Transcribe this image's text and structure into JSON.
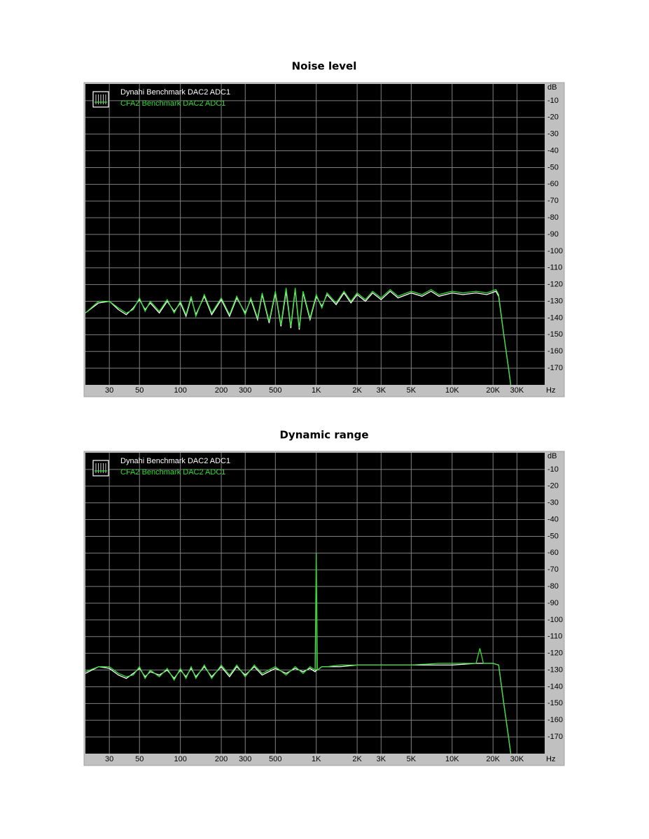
{
  "chart_data": [
    {
      "type": "line",
      "title": "Noise level",
      "x_unit": "Hz",
      "y_unit": "dB",
      "log_x": true,
      "grid": true,
      "xlim": [
        20,
        48000
      ],
      "ylim": [
        -180,
        0
      ],
      "xticks": [
        30,
        50,
        100,
        200,
        300,
        500,
        {
          "value": 1000,
          "label": "1K"
        },
        {
          "value": 2000,
          "label": "2K"
        },
        {
          "value": 3000,
          "label": "3K"
        },
        {
          "value": 5000,
          "label": "5K"
        },
        {
          "value": 10000,
          "label": "10K"
        },
        {
          "value": 20000,
          "label": "20K"
        },
        {
          "value": 30000,
          "label": "30K"
        }
      ],
      "yticks": [
        -10,
        -20,
        -30,
        -40,
        -50,
        -60,
        -70,
        -80,
        -90,
        -100,
        -110,
        -120,
        -130,
        -140,
        -150,
        -160,
        -170
      ],
      "x": [
        20,
        25,
        30,
        35,
        40,
        45,
        50,
        55,
        60,
        70,
        80,
        90,
        100,
        110,
        120,
        130,
        150,
        170,
        200,
        230,
        260,
        300,
        330,
        370,
        400,
        450,
        500,
        550,
        600,
        650,
        700,
        750,
        800,
        900,
        1000,
        1100,
        1200,
        1400,
        1600,
        1800,
        2000,
        2300,
        2600,
        3000,
        3500,
        4000,
        5000,
        6000,
        7000,
        8000,
        10000,
        12000,
        15000,
        18000,
        21000,
        22000,
        24000,
        26000,
        27000
      ],
      "series": [
        {
          "name": "Dynahi Benchmark DAC2 ADC1",
          "color": "#ffffff",
          "values": [
            -137,
            -131,
            -130,
            -135,
            -138,
            -134,
            -129,
            -135,
            -131,
            -137,
            -130,
            -136,
            -131,
            -139,
            -128,
            -138,
            -127,
            -138,
            -129,
            -139,
            -128,
            -137,
            -129,
            -141,
            -126,
            -143,
            -125,
            -145,
            -124,
            -146,
            -123,
            -147,
            -125,
            -141,
            -127,
            -133,
            -126,
            -132,
            -125,
            -131,
            -126,
            -130,
            -125,
            -129,
            -124,
            -128,
            -125,
            -127,
            -124,
            -127,
            -125,
            -126,
            -125,
            -126,
            -124,
            -127,
            -150,
            -170,
            -180
          ]
        },
        {
          "name": "CFA2 Benchmark DAC2 ADC1",
          "color": "#33dd33",
          "values": [
            -137,
            -130,
            -130,
            -134,
            -137,
            -135,
            -128,
            -136,
            -130,
            -136,
            -129,
            -137,
            -130,
            -138,
            -127,
            -139,
            -126,
            -137,
            -128,
            -138,
            -127,
            -138,
            -128,
            -140,
            -125,
            -142,
            -124,
            -144,
            -122,
            -145,
            -122,
            -146,
            -124,
            -140,
            -126,
            -134,
            -125,
            -131,
            -124,
            -130,
            -125,
            -129,
            -124,
            -128,
            -123,
            -127,
            -124,
            -126,
            -123,
            -126,
            -124,
            -125,
            -124,
            -125,
            -123,
            -126,
            -150,
            -170,
            -180
          ]
        }
      ]
    },
    {
      "type": "line",
      "title": "Dynamic range",
      "x_unit": "Hz",
      "y_unit": "dB",
      "log_x": true,
      "grid": true,
      "xlim": [
        20,
        48000
      ],
      "ylim": [
        -180,
        0
      ],
      "xticks": [
        30,
        50,
        100,
        200,
        300,
        500,
        {
          "value": 1000,
          "label": "1K"
        },
        {
          "value": 2000,
          "label": "2K"
        },
        {
          "value": 3000,
          "label": "3K"
        },
        {
          "value": 5000,
          "label": "5K"
        },
        {
          "value": 10000,
          "label": "10K"
        },
        {
          "value": 20000,
          "label": "20K"
        },
        {
          "value": 30000,
          "label": "30K"
        }
      ],
      "yticks": [
        -10,
        -20,
        -30,
        -40,
        -50,
        -60,
        -70,
        -80,
        -90,
        -100,
        -110,
        -120,
        -130,
        -140,
        -150,
        -160,
        -170
      ],
      "x": [
        20,
        25,
        30,
        35,
        40,
        45,
        50,
        55,
        60,
        70,
        80,
        90,
        100,
        110,
        120,
        130,
        150,
        170,
        200,
        230,
        260,
        300,
        350,
        400,
        500,
        600,
        700,
        800,
        900,
        980,
        1000,
        1020,
        1100,
        1200,
        1500,
        2000,
        3000,
        5000,
        8000,
        10000,
        15000,
        16000,
        17000,
        20000,
        22000,
        24000,
        26000,
        27000
      ],
      "series": [
        {
          "name": "Dynahi Benchmark DAC2 ADC1",
          "color": "#ffffff",
          "values": [
            -132,
            -128,
            -129,
            -133,
            -135,
            -132,
            -129,
            -134,
            -131,
            -133,
            -130,
            -135,
            -130,
            -134,
            -129,
            -134,
            -128,
            -134,
            -128,
            -134,
            -128,
            -133,
            -128,
            -133,
            -129,
            -132,
            -129,
            -131,
            -129,
            -131,
            -130,
            -130,
            -128,
            -128,
            -128,
            -127,
            -127,
            -127,
            -127,
            -127,
            -126,
            -126,
            -126,
            -126,
            -127,
            -150,
            -170,
            -180
          ]
        },
        {
          "name": "CFA2 Benchmark DAC2 ADC1",
          "color": "#33dd33",
          "values": [
            -131,
            -128,
            -128,
            -132,
            -134,
            -133,
            -128,
            -135,
            -130,
            -134,
            -129,
            -136,
            -129,
            -135,
            -128,
            -135,
            -127,
            -135,
            -127,
            -133,
            -127,
            -134,
            -127,
            -132,
            -128,
            -133,
            -128,
            -132,
            -128,
            -130,
            -60,
            -130,
            -128,
            -128,
            -127,
            -127,
            -127,
            -127,
            -126,
            -126,
            -126,
            -117,
            -126,
            -126,
            -127,
            -150,
            -170,
            -180
          ]
        }
      ]
    }
  ]
}
